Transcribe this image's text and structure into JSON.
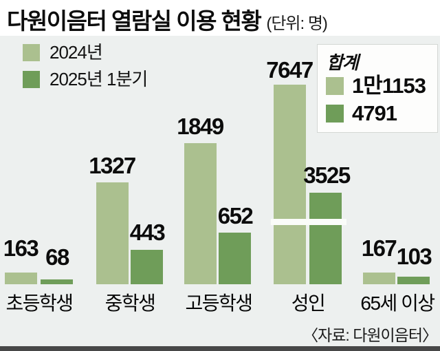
{
  "title": {
    "text": "다원이음터 열람실 이용 현황",
    "unit": "(단위: 명)"
  },
  "legend": {
    "items": [
      {
        "label": "2024년",
        "swatch": "light-green-swatch"
      },
      {
        "label": "2025년 1분기",
        "swatch": "dark-green-swatch"
      }
    ]
  },
  "totals_box": {
    "title": "합계",
    "items": [
      {
        "label": "1만1153",
        "swatch": "light-green-swatch"
      },
      {
        "label": "4791",
        "swatch": "dark-green-swatch"
      }
    ]
  },
  "source_note": "〈자료: 다원이음터〉",
  "colors": {
    "light_green": "#abc08f",
    "dark_green": "#6f9d59",
    "chart_background": "#edf0ef",
    "text": "#0d0d0d",
    "bottom_rule": "#474747"
  },
  "chart_data": {
    "type": "bar",
    "title": "다원이음터 열람실 이용 현황",
    "unit": "명",
    "categories": [
      "초등학생",
      "중학생",
      "고등학생",
      "성인",
      "65세 이상"
    ],
    "series": [
      {
        "name": "2024년",
        "color": "#abc08f",
        "values": [
          163,
          1327,
          1849,
          7647,
          167
        ],
        "total": 11153,
        "total_display": "1만1153"
      },
      {
        "name": "2025년 1분기",
        "color": "#6f9d59",
        "values": [
          68,
          443,
          652,
          3525,
          103
        ],
        "total": 4791,
        "total_display": "4791"
      }
    ],
    "value_labels": true,
    "legend_position": "top-left",
    "grid": false,
    "axis_break": {
      "category": "성인",
      "applies_to": "both series",
      "style": "white horizontal band across the two 성인 bars"
    }
  }
}
